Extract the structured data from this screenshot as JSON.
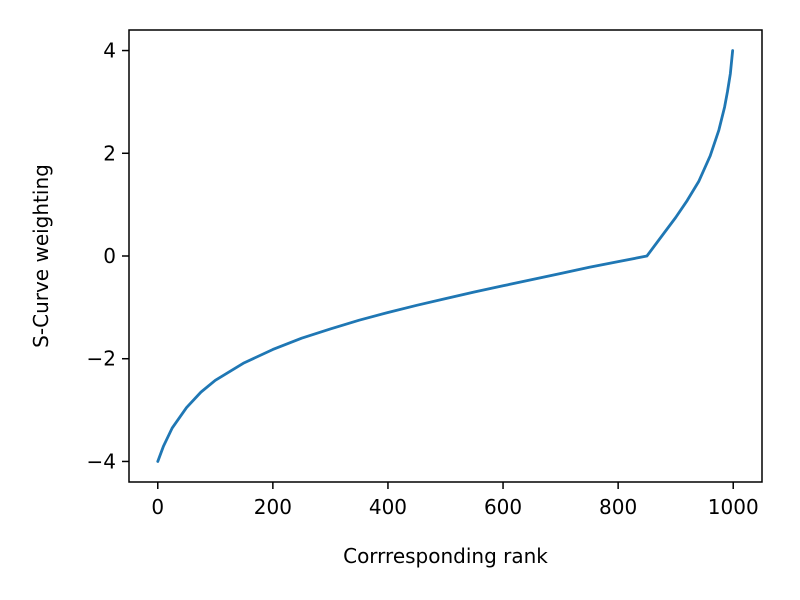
{
  "chart_data": {
    "type": "line",
    "title": "",
    "xlabel": "Corrresponding rank",
    "ylabel": "S-Curve weighting",
    "xlim": [
      -50,
      1050
    ],
    "ylim": [
      -4.4,
      4.4
    ],
    "xticks": [
      0,
      200,
      400,
      600,
      800,
      1000
    ],
    "xtick_labels": [
      "0",
      "200",
      "400",
      "600",
      "800",
      "1000"
    ],
    "yticks": [
      -4,
      -2,
      0,
      2,
      4
    ],
    "ytick_labels": [
      "−4",
      "−2",
      "0",
      "2",
      "4"
    ],
    "grid": false,
    "legend": "none",
    "series": [
      {
        "color": "#1f77b4",
        "x": [
          0,
          10,
          25,
          50,
          75,
          100,
          150,
          200,
          250,
          300,
          350,
          400,
          450,
          500,
          550,
          600,
          650,
          700,
          750,
          800,
          850,
          880,
          900,
          920,
          940,
          960,
          975,
          985,
          990,
          995,
          999
        ],
        "y": [
          -4.0,
          -3.7,
          -3.35,
          -2.95,
          -2.65,
          -2.42,
          -2.08,
          -1.82,
          -1.6,
          -1.42,
          -1.25,
          -1.1,
          -0.96,
          -0.83,
          -0.7,
          -0.58,
          -0.46,
          -0.34,
          -0.22,
          -0.11,
          0.0,
          0.45,
          0.75,
          1.08,
          1.45,
          1.95,
          2.45,
          2.9,
          3.2,
          3.55,
          4.0
        ]
      }
    ]
  }
}
